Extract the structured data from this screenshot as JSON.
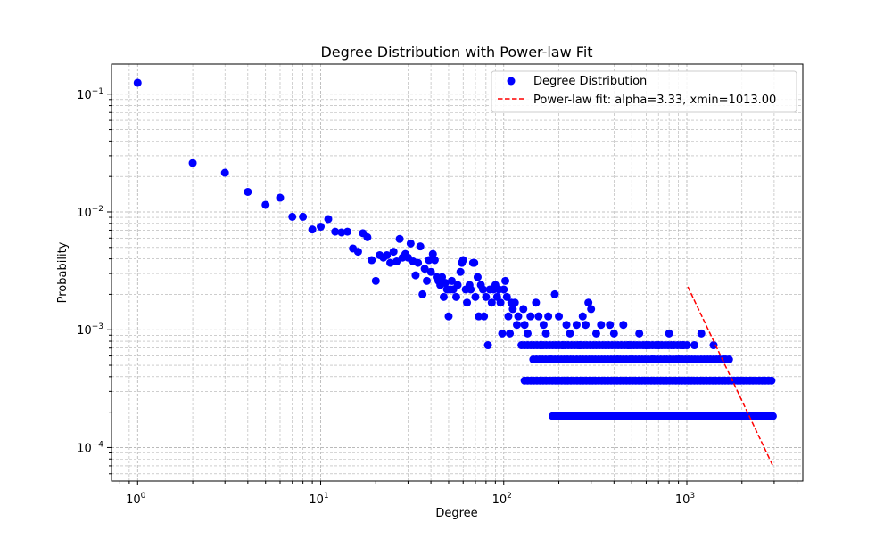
{
  "chart_data": {
    "type": "scatter",
    "title": "Degree Distribution with Power-law Fit",
    "xlabel": "Degree",
    "ylabel": "Probability",
    "xscale": "log",
    "yscale": "log",
    "xlim": [
      0.72,
      4300
    ],
    "ylim": [
      5.2e-05,
      0.18
    ],
    "grid": true,
    "legend_position": "top-right",
    "x_ticks": [
      {
        "value": 1,
        "base": "10",
        "exp": "0"
      },
      {
        "value": 10,
        "base": "10",
        "exp": "1"
      },
      {
        "value": 100,
        "base": "10",
        "exp": "2"
      },
      {
        "value": 1000,
        "base": "10",
        "exp": "3"
      }
    ],
    "y_ticks": [
      {
        "value": 0.0001,
        "base": "10",
        "exp": "−4"
      },
      {
        "value": 0.001,
        "base": "10",
        "exp": "−3"
      },
      {
        "value": 0.01,
        "base": "10",
        "exp": "−2"
      },
      {
        "value": 0.1,
        "base": "10",
        "exp": "−1"
      }
    ],
    "series": [
      {
        "name": "Degree Distribution",
        "kind": "scatter",
        "color": "#0000ff",
        "points": [
          [
            1,
            0.125
          ],
          [
            2,
            0.026
          ],
          [
            3,
            0.0215
          ],
          [
            4,
            0.0148
          ],
          [
            5,
            0.0115
          ],
          [
            6,
            0.0132
          ],
          [
            7,
            0.0091
          ],
          [
            8,
            0.0091
          ],
          [
            9,
            0.0071
          ],
          [
            10,
            0.0075
          ],
          [
            11,
            0.0087
          ],
          [
            12,
            0.0068
          ],
          [
            13,
            0.0067
          ],
          [
            14,
            0.0068
          ],
          [
            15,
            0.0049
          ],
          [
            16,
            0.0046
          ],
          [
            17,
            0.0066
          ],
          [
            18,
            0.0061
          ],
          [
            19,
            0.0039
          ],
          [
            20,
            0.0026
          ],
          [
            21,
            0.0043
          ],
          [
            22,
            0.0041
          ],
          [
            23,
            0.0043
          ],
          [
            24,
            0.0037
          ],
          [
            25,
            0.0046
          ],
          [
            26,
            0.0038
          ],
          [
            27,
            0.0059
          ],
          [
            28,
            0.0041
          ],
          [
            29,
            0.0044
          ],
          [
            30,
            0.0041
          ],
          [
            31,
            0.0054
          ],
          [
            32,
            0.0038
          ],
          [
            33,
            0.0029
          ],
          [
            34,
            0.0037
          ],
          [
            35,
            0.0051
          ],
          [
            36,
            0.002
          ],
          [
            37,
            0.0033
          ],
          [
            38,
            0.0026
          ],
          [
            39,
            0.0039
          ],
          [
            40,
            0.0031
          ],
          [
            41,
            0.0044
          ],
          [
            42,
            0.0039
          ],
          [
            43,
            0.0028
          ],
          [
            44,
            0.0026
          ],
          [
            45,
            0.0024
          ],
          [
            46,
            0.0028
          ],
          [
            47,
            0.0019
          ],
          [
            48,
            0.0025
          ],
          [
            49,
            0.0022
          ],
          [
            50,
            0.0013
          ],
          [
            51,
            0.0022
          ],
          [
            52,
            0.0026
          ],
          [
            53,
            0.0022
          ],
          [
            55,
            0.0019
          ],
          [
            56,
            0.0024
          ],
          [
            58,
            0.0031
          ],
          [
            59,
            0.0037
          ],
          [
            60,
            0.0039
          ],
          [
            62,
            0.0022
          ],
          [
            63,
            0.0017
          ],
          [
            65,
            0.0024
          ],
          [
            66,
            0.0022
          ],
          [
            68,
            0.0037
          ],
          [
            69,
            0.0037
          ],
          [
            70,
            0.0019
          ],
          [
            72,
            0.0028
          ],
          [
            73,
            0.0013
          ],
          [
            75,
            0.0024
          ],
          [
            77,
            0.0022
          ],
          [
            78,
            0.0013
          ],
          [
            80,
            0.0019
          ],
          [
            82,
            0.00074
          ],
          [
            84,
            0.0022
          ],
          [
            86,
            0.0017
          ],
          [
            88,
            0.0022
          ],
          [
            90,
            0.0024
          ],
          [
            92,
            0.0019
          ],
          [
            94,
            0.0022
          ],
          [
            96,
            0.0017
          ],
          [
            98,
            0.00093
          ],
          [
            100,
            0.0022
          ],
          [
            102,
            0.0026
          ],
          [
            104,
            0.0019
          ],
          [
            106,
            0.0013
          ],
          [
            108,
            0.00093
          ],
          [
            110,
            0.0017
          ],
          [
            112,
            0.0015
          ],
          [
            115,
            0.0017
          ],
          [
            118,
            0.0011
          ],
          [
            120,
            0.0013
          ],
          [
            125,
            0.00074
          ],
          [
            128,
            0.0015
          ],
          [
            130,
            0.0011
          ],
          [
            135,
            0.00093
          ],
          [
            140,
            0.0013
          ],
          [
            145,
            0.00056
          ],
          [
            150,
            0.0017
          ],
          [
            155,
            0.0013
          ],
          [
            160,
            0.00074
          ],
          [
            165,
            0.0011
          ],
          [
            170,
            0.00093
          ],
          [
            175,
            0.0013
          ],
          [
            180,
            0.00056
          ],
          [
            190,
            0.002
          ],
          [
            200,
            0.0013
          ],
          [
            210,
            0.00074
          ],
          [
            220,
            0.0011
          ],
          [
            230,
            0.00093
          ],
          [
            240,
            0.00056
          ],
          [
            250,
            0.0011
          ],
          [
            260,
            0.00074
          ],
          [
            270,
            0.0013
          ],
          [
            280,
            0.0011
          ],
          [
            290,
            0.0017
          ],
          [
            300,
            0.0015
          ],
          [
            320,
            0.00093
          ],
          [
            340,
            0.0011
          ],
          [
            360,
            0.00074
          ],
          [
            380,
            0.0011
          ],
          [
            400,
            0.00093
          ],
          [
            420,
            0.00056
          ],
          [
            450,
            0.0011
          ],
          [
            480,
            0.00074
          ],
          [
            500,
            0.00056
          ],
          [
            550,
            0.00093
          ],
          [
            600,
            0.00074
          ],
          [
            650,
            0.00056
          ],
          [
            700,
            0.00074
          ],
          [
            750,
            0.00056
          ],
          [
            800,
            0.00093
          ],
          [
            850,
            0.00074
          ],
          [
            900,
            0.00056
          ],
          [
            950,
            0.00074
          ],
          [
            1100,
            0.00074
          ],
          [
            1200,
            0.00093
          ],
          [
            1300,
            0.00056
          ],
          [
            1400,
            0.00074
          ],
          [
            1500,
            0.00056
          ],
          [
            1600,
            0.00056
          ],
          [
            1700,
            0.00056
          ]
        ],
        "bands": [
          {
            "y": 0.00074,
            "from": 125,
            "to": 1000
          },
          {
            "y": 0.00056,
            "from": 145,
            "to": 1700
          },
          {
            "y": 0.00037,
            "from": 130,
            "to": 2900
          },
          {
            "y": 0.000185,
            "from": 185,
            "to": 2950
          }
        ]
      },
      {
        "name": "Power-law fit: alpha=3.33, xmin=1013.00",
        "kind": "line",
        "color": "#ff0000",
        "dash": "dashed",
        "x": [
          1013,
          2950
        ],
        "y": [
          0.00232,
          7e-05
        ]
      }
    ]
  }
}
